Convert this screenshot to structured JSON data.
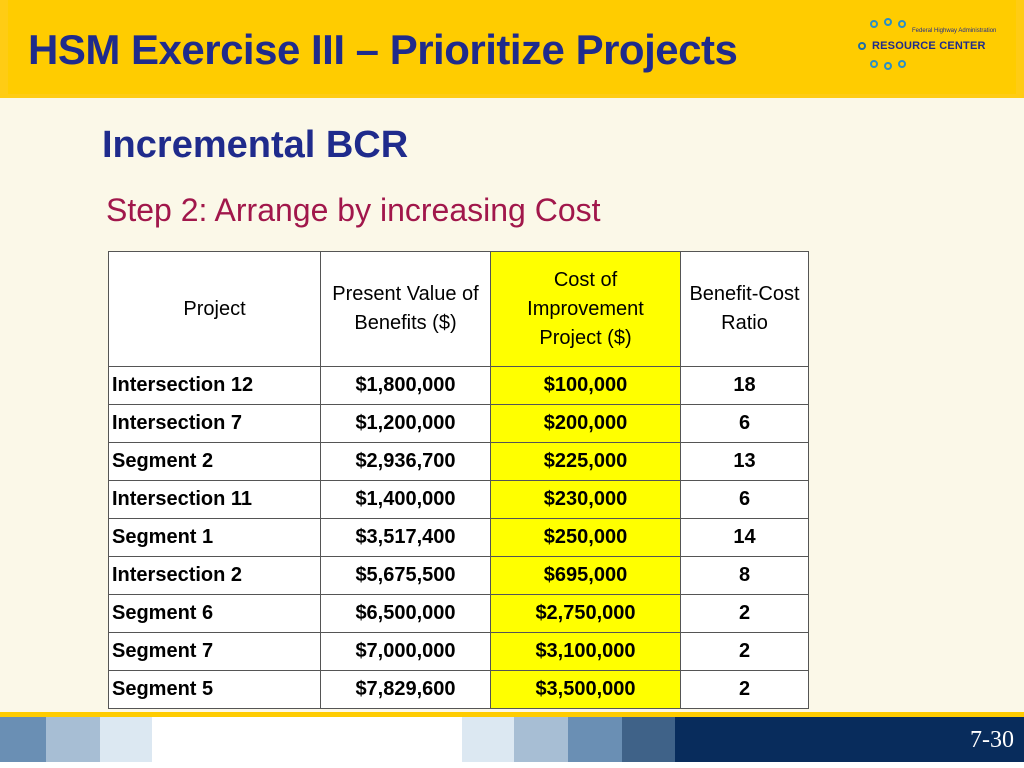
{
  "header": {
    "title": "HSM Exercise III – Prioritize Projects",
    "logo": {
      "small_text": "Federal Highway Administration",
      "main_text": "RESOURCE CENTER"
    }
  },
  "content": {
    "subtitle": "Incremental BCR",
    "step": "Step 2: Arrange by increasing Cost"
  },
  "table": {
    "headers": [
      "Project",
      "Present Value of Benefits ($)",
      "Cost of Improvement Project ($)",
      "Benefit-Cost Ratio"
    ],
    "rows": [
      [
        "Intersection 12",
        "$1,800,000",
        "$100,000",
        "18"
      ],
      [
        "Intersection 7",
        "$1,200,000",
        "$200,000",
        "6"
      ],
      [
        "Segment 2",
        "$2,936,700",
        "$225,000",
        "13"
      ],
      [
        "Intersection 11",
        "$1,400,000",
        "$230,000",
        "6"
      ],
      [
        "Segment 1",
        "$3,517,400",
        "$250,000",
        "14"
      ],
      [
        "Intersection 2",
        "$5,675,500",
        "$695,000",
        "8"
      ],
      [
        "Segment 6",
        "$6,500,000",
        "$2,750,000",
        "2"
      ],
      [
        "Segment 7",
        "$7,000,000",
        "$3,100,000",
        "2"
      ],
      [
        "Segment 5",
        "$7,829,600",
        "$3,500,000",
        "2"
      ]
    ]
  },
  "footer": {
    "page_number": "7-30"
  },
  "colors": {
    "header_bg": "#ffcc00",
    "title_text": "#1f2b8c",
    "step_text": "#a1174b",
    "highlight": "#ffff00",
    "footer_navy": "#082c5c"
  }
}
